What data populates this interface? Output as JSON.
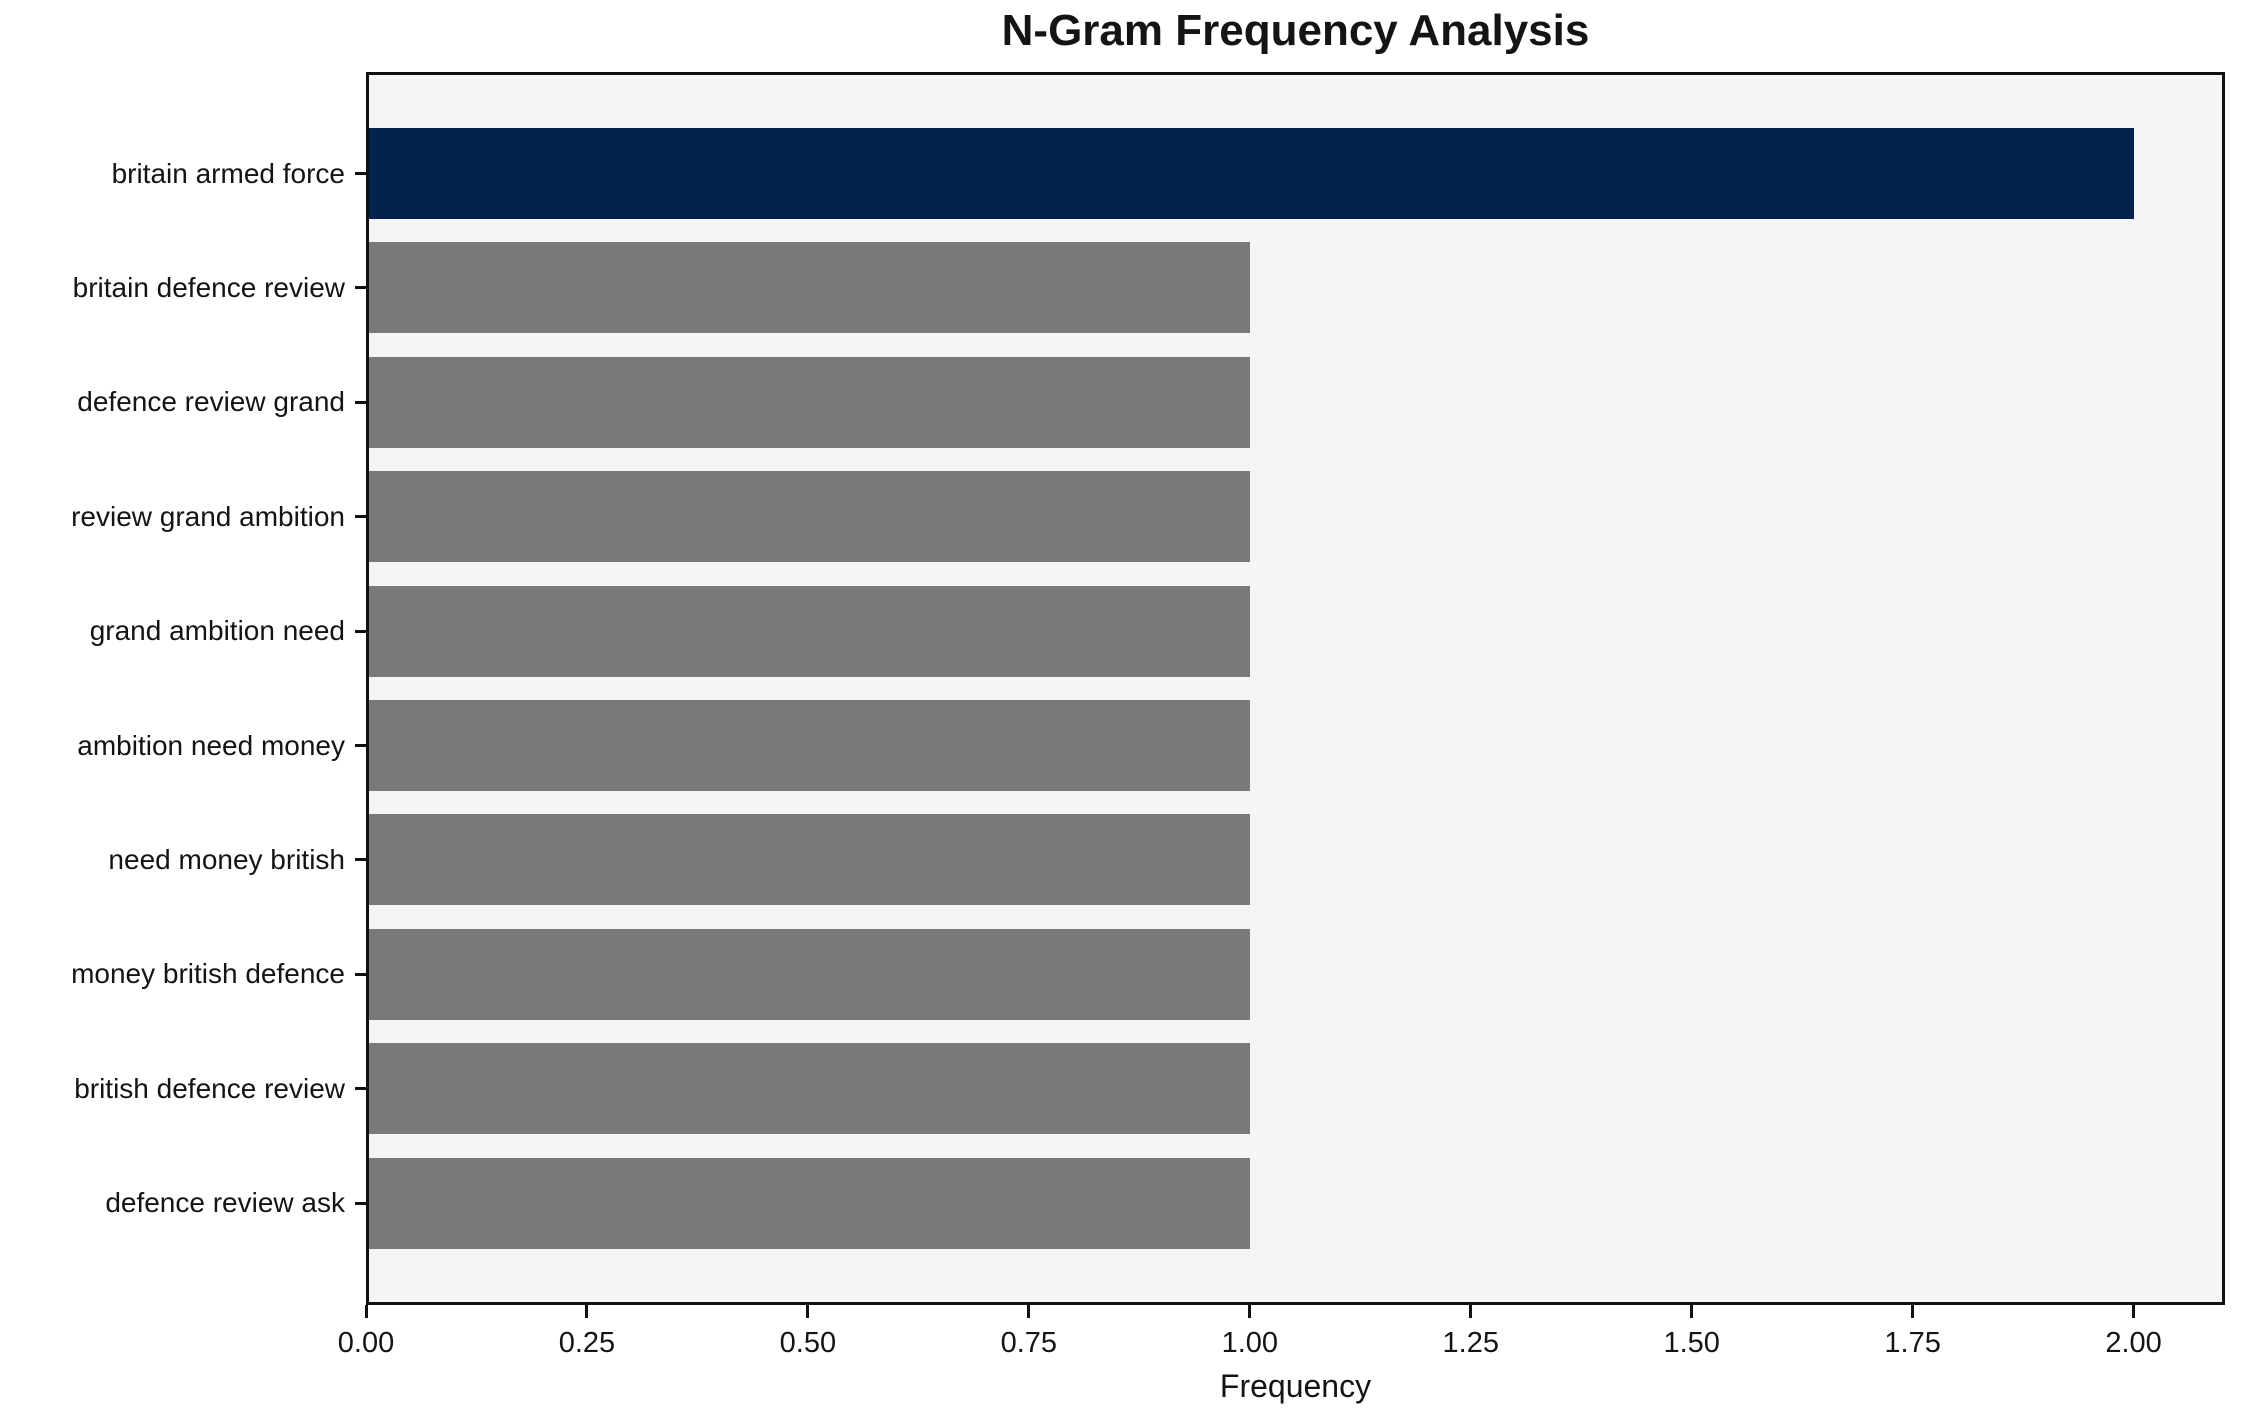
{
  "title": "N-Gram Frequency Analysis",
  "chart_data": {
    "type": "bar",
    "orientation": "horizontal",
    "title": "N-Gram Frequency Analysis",
    "xlabel": "Frequency",
    "ylabel": "",
    "categories": [
      "britain armed force",
      "britain defence review",
      "defence review grand",
      "review grand ambition",
      "grand ambition need",
      "ambition need money",
      "need money british",
      "money british defence",
      "british defence review",
      "defence review ask"
    ],
    "values": [
      2,
      1,
      1,
      1,
      1,
      1,
      1,
      1,
      1,
      1
    ],
    "bar_colors": [
      "#03234e",
      "#7a7977",
      "#7a7977",
      "#7a7977",
      "#7a7977",
      "#7a7977",
      "#7a7977",
      "#7a7977",
      "#7a7977",
      "#7a7977"
    ],
    "xlim": [
      0,
      2.104
    ],
    "xtick_labels": [
      "0.00",
      "0.25",
      "0.50",
      "0.75",
      "1.00",
      "1.25",
      "1.50",
      "1.75",
      "2.00"
    ],
    "xticks": [
      0,
      0.25,
      0.5,
      0.75,
      1.0,
      1.25,
      1.5,
      1.75,
      2.0
    ],
    "grid": false,
    "legend_position": "none",
    "colors": {
      "highlight_bar": "#03234e",
      "default_bar": "#7a7977",
      "plot_background": "#f5f5f5",
      "figure_background": "#ffffff",
      "frame": "#111111",
      "text": "#141414"
    }
  }
}
